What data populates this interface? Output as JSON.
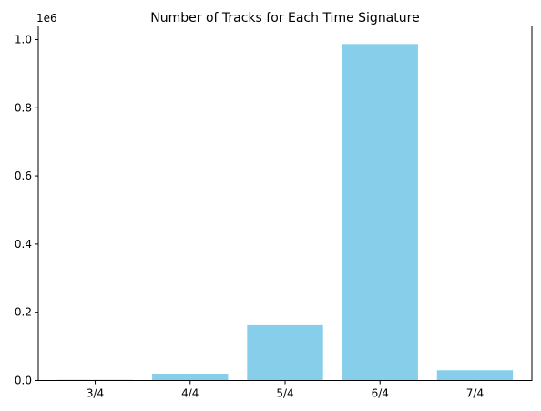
{
  "chart_data": {
    "type": "bar",
    "title": "Number of Tracks for Each Time Signature",
    "xlabel": "",
    "ylabel": "",
    "categories": [
      "3/4",
      "4/4",
      "5/4",
      "6/4",
      "7/4"
    ],
    "values": [
      2000,
      20000,
      162000,
      987000,
      30000
    ],
    "ylim": [
      0,
      1040000
    ],
    "yticks": [
      0,
      200000,
      400000,
      600000,
      800000,
      1000000
    ],
    "ytick_labels": [
      "0.0",
      "0.2",
      "0.4",
      "0.6",
      "0.8",
      "1.0"
    ],
    "y_scale_label": "1e6",
    "bar_color": "#87ceeb",
    "grid": false,
    "legend": "none"
  }
}
